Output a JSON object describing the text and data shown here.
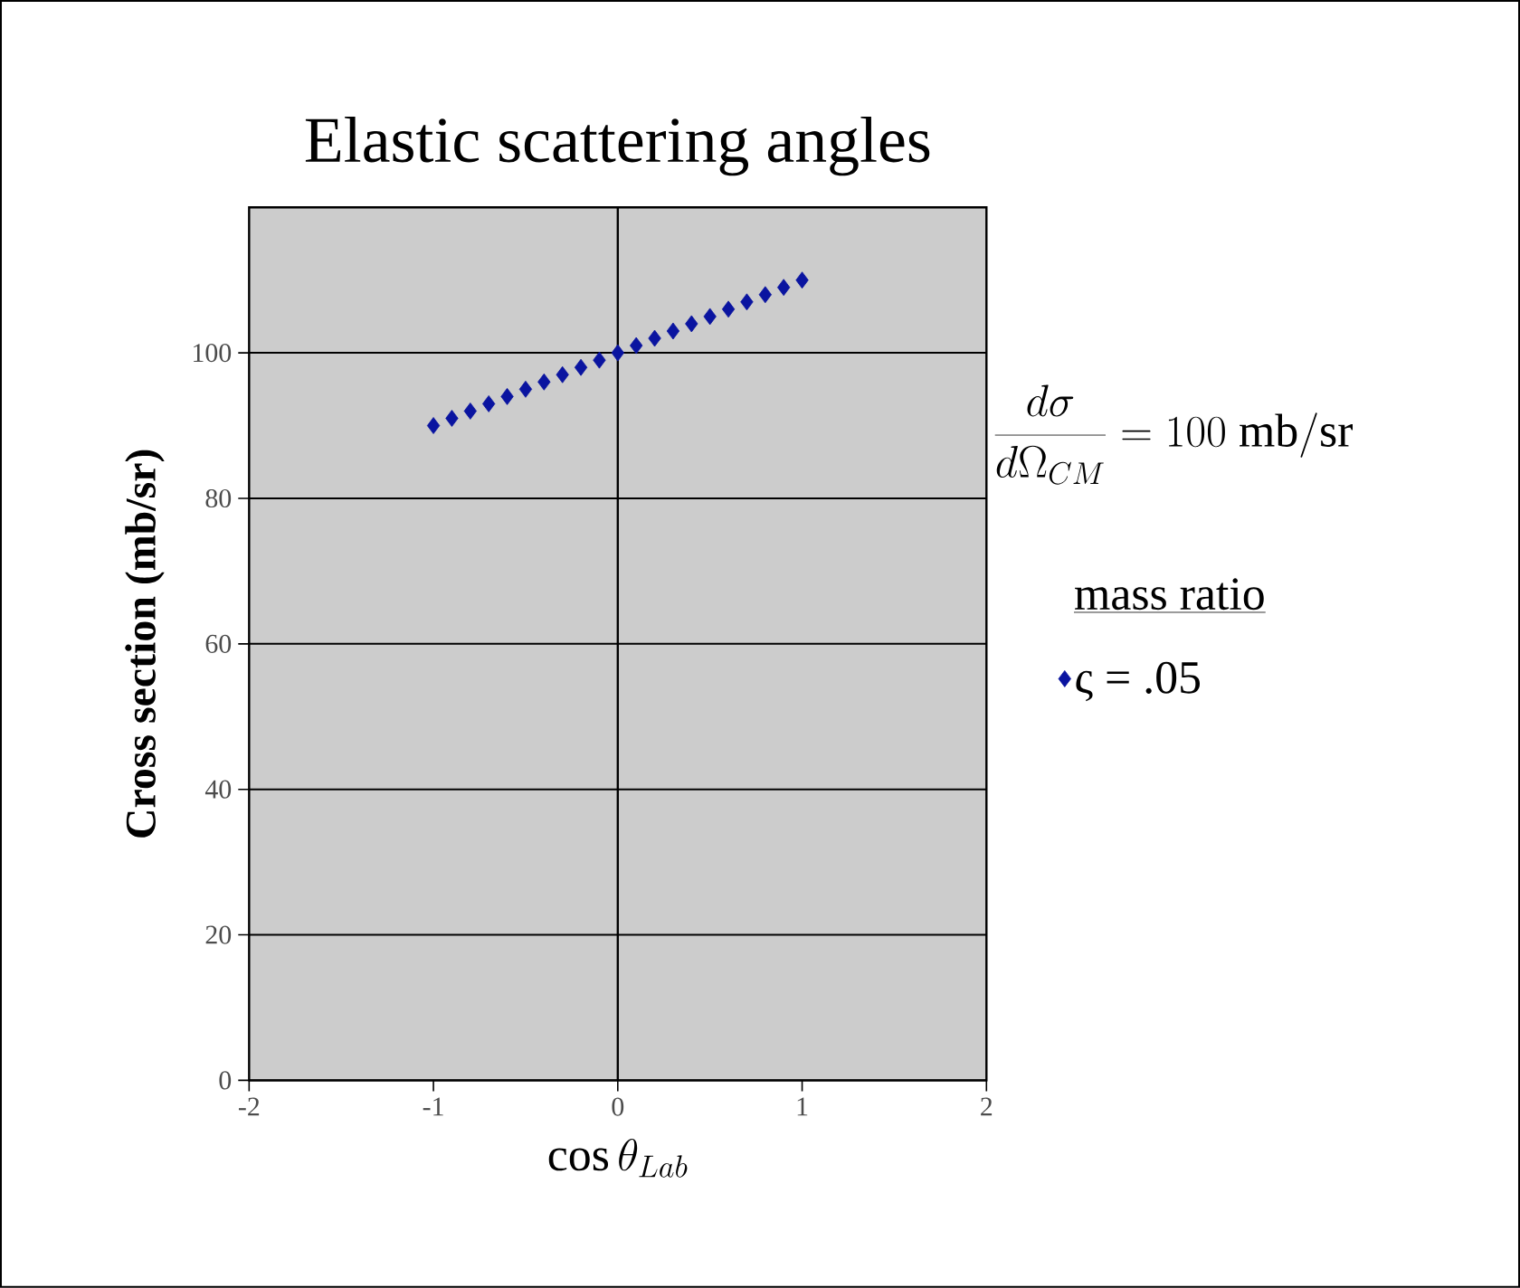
{
  "chart_data": {
    "type": "scatter",
    "title": "Elastic scattering angles",
    "xlabel": "\\cos\\theta_{Lab}",
    "ylabel": "Cross section (mb/sr)",
    "legend_title": "mass ratio",
    "legend": "right",
    "marker": "diamond",
    "grid": "y",
    "annotations": [
      "\\frac{d\\sigma}{d\\Omega_{CM}} = 100\\ \\mathrm{mb/sr}"
    ],
    "ref_lines": [
      {
        "axis": "x",
        "value": 0,
        "color": "#000000"
      }
    ],
    "xlim": [
      -2,
      2
    ],
    "xticks": [
      -2,
      -1,
      0,
      1,
      2
    ],
    "ylim": [
      0,
      120
    ],
    "yticks": [
      0,
      20,
      40,
      60,
      80,
      100
    ],
    "series": [
      {
        "name": "ς = .05",
        "color": "#0a14a0",
        "x": [
          -1,
          -0.9,
          -0.8,
          -0.7,
          -0.6,
          -0.5,
          -0.4,
          -0.3,
          -0.2,
          -0.1,
          0,
          0.1,
          0.2,
          0.3,
          0.4,
          0.5,
          0.6,
          0.7,
          0.8,
          0.9,
          1
        ],
        "values": [
          90,
          91,
          92,
          93,
          94,
          95,
          96,
          97,
          98,
          99,
          100,
          101,
          102,
          103,
          104,
          105,
          106,
          107,
          108,
          109,
          110
        ]
      }
    ]
  }
}
